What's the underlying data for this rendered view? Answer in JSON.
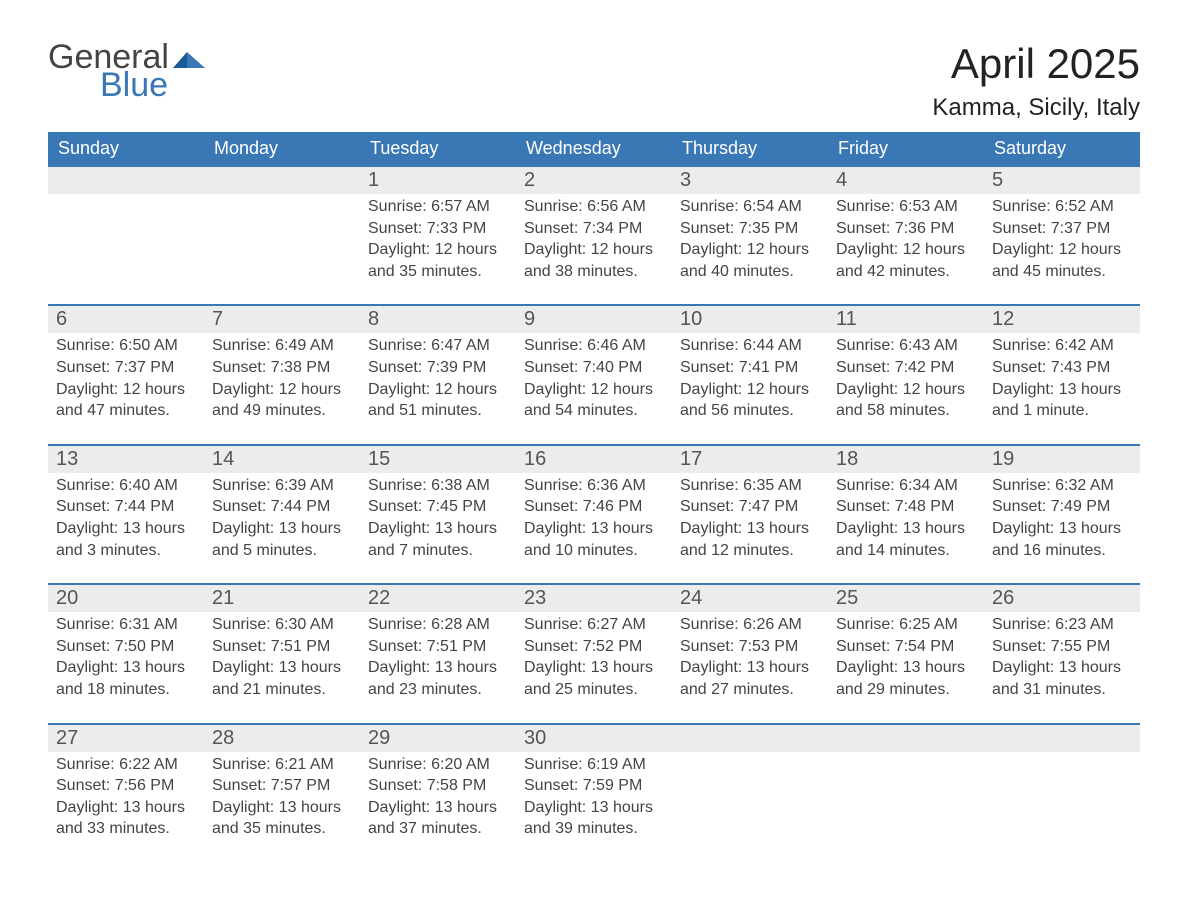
{
  "brand": {
    "general": "General",
    "blue": "Blue"
  },
  "colors": {
    "brand_blue": "#3a78b5",
    "row_band": "#ececec",
    "text": "#333333",
    "white": "#ffffff"
  },
  "title": "April 2025",
  "location": "Kamma, Sicily, Italy",
  "day_headers": [
    "Sunday",
    "Monday",
    "Tuesday",
    "Wednesday",
    "Thursday",
    "Friday",
    "Saturday"
  ],
  "weeks": [
    [
      null,
      null,
      {
        "n": "1",
        "sunrise": "Sunrise: 6:57 AM",
        "sunset": "Sunset: 7:33 PM",
        "dl1": "Daylight: 12 hours",
        "dl2": "and 35 minutes."
      },
      {
        "n": "2",
        "sunrise": "Sunrise: 6:56 AM",
        "sunset": "Sunset: 7:34 PM",
        "dl1": "Daylight: 12 hours",
        "dl2": "and 38 minutes."
      },
      {
        "n": "3",
        "sunrise": "Sunrise: 6:54 AM",
        "sunset": "Sunset: 7:35 PM",
        "dl1": "Daylight: 12 hours",
        "dl2": "and 40 minutes."
      },
      {
        "n": "4",
        "sunrise": "Sunrise: 6:53 AM",
        "sunset": "Sunset: 7:36 PM",
        "dl1": "Daylight: 12 hours",
        "dl2": "and 42 minutes."
      },
      {
        "n": "5",
        "sunrise": "Sunrise: 6:52 AM",
        "sunset": "Sunset: 7:37 PM",
        "dl1": "Daylight: 12 hours",
        "dl2": "and 45 minutes."
      }
    ],
    [
      {
        "n": "6",
        "sunrise": "Sunrise: 6:50 AM",
        "sunset": "Sunset: 7:37 PM",
        "dl1": "Daylight: 12 hours",
        "dl2": "and 47 minutes."
      },
      {
        "n": "7",
        "sunrise": "Sunrise: 6:49 AM",
        "sunset": "Sunset: 7:38 PM",
        "dl1": "Daylight: 12 hours",
        "dl2": "and 49 minutes."
      },
      {
        "n": "8",
        "sunrise": "Sunrise: 6:47 AM",
        "sunset": "Sunset: 7:39 PM",
        "dl1": "Daylight: 12 hours",
        "dl2": "and 51 minutes."
      },
      {
        "n": "9",
        "sunrise": "Sunrise: 6:46 AM",
        "sunset": "Sunset: 7:40 PM",
        "dl1": "Daylight: 12 hours",
        "dl2": "and 54 minutes."
      },
      {
        "n": "10",
        "sunrise": "Sunrise: 6:44 AM",
        "sunset": "Sunset: 7:41 PM",
        "dl1": "Daylight: 12 hours",
        "dl2": "and 56 minutes."
      },
      {
        "n": "11",
        "sunrise": "Sunrise: 6:43 AM",
        "sunset": "Sunset: 7:42 PM",
        "dl1": "Daylight: 12 hours",
        "dl2": "and 58 minutes."
      },
      {
        "n": "12",
        "sunrise": "Sunrise: 6:42 AM",
        "sunset": "Sunset: 7:43 PM",
        "dl1": "Daylight: 13 hours",
        "dl2": "and 1 minute."
      }
    ],
    [
      {
        "n": "13",
        "sunrise": "Sunrise: 6:40 AM",
        "sunset": "Sunset: 7:44 PM",
        "dl1": "Daylight: 13 hours",
        "dl2": "and 3 minutes."
      },
      {
        "n": "14",
        "sunrise": "Sunrise: 6:39 AM",
        "sunset": "Sunset: 7:44 PM",
        "dl1": "Daylight: 13 hours",
        "dl2": "and 5 minutes."
      },
      {
        "n": "15",
        "sunrise": "Sunrise: 6:38 AM",
        "sunset": "Sunset: 7:45 PM",
        "dl1": "Daylight: 13 hours",
        "dl2": "and 7 minutes."
      },
      {
        "n": "16",
        "sunrise": "Sunrise: 6:36 AM",
        "sunset": "Sunset: 7:46 PM",
        "dl1": "Daylight: 13 hours",
        "dl2": "and 10 minutes."
      },
      {
        "n": "17",
        "sunrise": "Sunrise: 6:35 AM",
        "sunset": "Sunset: 7:47 PM",
        "dl1": "Daylight: 13 hours",
        "dl2": "and 12 minutes."
      },
      {
        "n": "18",
        "sunrise": "Sunrise: 6:34 AM",
        "sunset": "Sunset: 7:48 PM",
        "dl1": "Daylight: 13 hours",
        "dl2": "and 14 minutes."
      },
      {
        "n": "19",
        "sunrise": "Sunrise: 6:32 AM",
        "sunset": "Sunset: 7:49 PM",
        "dl1": "Daylight: 13 hours",
        "dl2": "and 16 minutes."
      }
    ],
    [
      {
        "n": "20",
        "sunrise": "Sunrise: 6:31 AM",
        "sunset": "Sunset: 7:50 PM",
        "dl1": "Daylight: 13 hours",
        "dl2": "and 18 minutes."
      },
      {
        "n": "21",
        "sunrise": "Sunrise: 6:30 AM",
        "sunset": "Sunset: 7:51 PM",
        "dl1": "Daylight: 13 hours",
        "dl2": "and 21 minutes."
      },
      {
        "n": "22",
        "sunrise": "Sunrise: 6:28 AM",
        "sunset": "Sunset: 7:51 PM",
        "dl1": "Daylight: 13 hours",
        "dl2": "and 23 minutes."
      },
      {
        "n": "23",
        "sunrise": "Sunrise: 6:27 AM",
        "sunset": "Sunset: 7:52 PM",
        "dl1": "Daylight: 13 hours",
        "dl2": "and 25 minutes."
      },
      {
        "n": "24",
        "sunrise": "Sunrise: 6:26 AM",
        "sunset": "Sunset: 7:53 PM",
        "dl1": "Daylight: 13 hours",
        "dl2": "and 27 minutes."
      },
      {
        "n": "25",
        "sunrise": "Sunrise: 6:25 AM",
        "sunset": "Sunset: 7:54 PM",
        "dl1": "Daylight: 13 hours",
        "dl2": "and 29 minutes."
      },
      {
        "n": "26",
        "sunrise": "Sunrise: 6:23 AM",
        "sunset": "Sunset: 7:55 PM",
        "dl1": "Daylight: 13 hours",
        "dl2": "and 31 minutes."
      }
    ],
    [
      {
        "n": "27",
        "sunrise": "Sunrise: 6:22 AM",
        "sunset": "Sunset: 7:56 PM",
        "dl1": "Daylight: 13 hours",
        "dl2": "and 33 minutes."
      },
      {
        "n": "28",
        "sunrise": "Sunrise: 6:21 AM",
        "sunset": "Sunset: 7:57 PM",
        "dl1": "Daylight: 13 hours",
        "dl2": "and 35 minutes."
      },
      {
        "n": "29",
        "sunrise": "Sunrise: 6:20 AM",
        "sunset": "Sunset: 7:58 PM",
        "dl1": "Daylight: 13 hours",
        "dl2": "and 37 minutes."
      },
      {
        "n": "30",
        "sunrise": "Sunrise: 6:19 AM",
        "sunset": "Sunset: 7:59 PM",
        "dl1": "Daylight: 13 hours",
        "dl2": "and 39 minutes."
      },
      null,
      null,
      null
    ]
  ]
}
